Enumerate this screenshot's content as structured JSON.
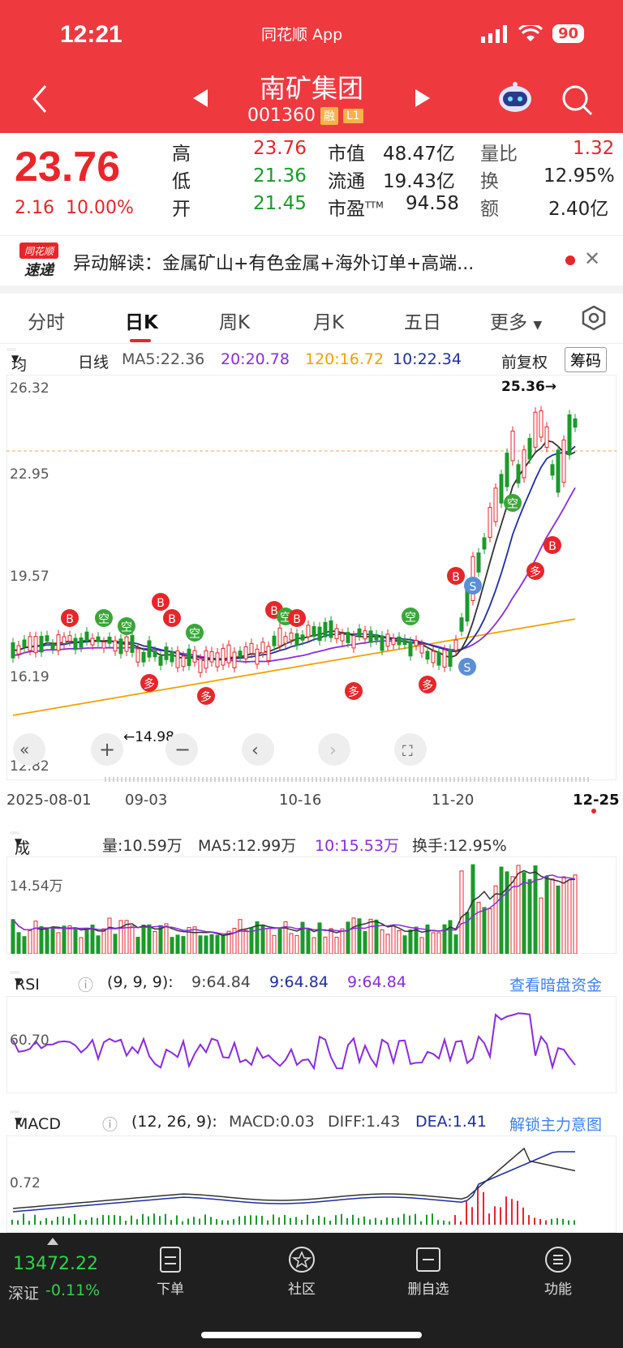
{
  "status": {
    "time": "12:21",
    "app": "同花顺 App",
    "battery": "90"
  },
  "stock": {
    "name": "南矿集团",
    "code": "001360",
    "tag1": "融",
    "tag2": "L1"
  },
  "quote": {
    "price": "23.76",
    "change": "2.16",
    "change_pct": "10.00%",
    "high_label": "高",
    "high": "23.76",
    "low_label": "低",
    "low": "21.36",
    "open_label": "开",
    "open": "21.45",
    "mcap_label": "市值",
    "mcap": "48.47亿",
    "float_label": "流通",
    "float": "19.43亿",
    "pe_label": "市盈",
    "pe_sup": "TTM",
    "pe": "94.58",
    "vr_label": "量比",
    "vr": "1.32",
    "turn_label": "换",
    "turn": "12.95%",
    "amt_label": "额",
    "amt": "2.40亿"
  },
  "news": {
    "logo_top": "同花顺",
    "logo_bottom": "速递",
    "text": "异动解读：金属矿山+有色金属+海外订单+高端..."
  },
  "tabs": [
    "分时",
    "日K",
    "周K",
    "月K",
    "五日",
    "更多"
  ],
  "ma_bar": {
    "chip": "均线",
    "period": "日线",
    "ma5": "MA5:22.36",
    "ma20": "20:20.78",
    "ma120": "120:16.72",
    "ma10": "10:22.34",
    "adj": "前复权",
    "chip_btn": "筹码"
  },
  "kline": {
    "y_ticks": [
      "26.32",
      "22.95",
      "19.57",
      "16.19",
      "12.82"
    ],
    "x_ticks": [
      "2025-08-01",
      "09-03",
      "10-16",
      "11-20",
      "12-25"
    ],
    "high_marker": "25.36→",
    "low_marker": "←14.98"
  },
  "volume": {
    "chip": "成交量",
    "vol": "量:10.59万",
    "ma5": "MA5:12.99万",
    "ma10": "10:15.53万",
    "turnover": "换手:12.95%",
    "tick": "14.54万"
  },
  "rsi": {
    "chip": "RSI",
    "params": "(9, 9, 9):",
    "v1": "9:64.84",
    "v2": "9:64.84",
    "v3": "9:64.84",
    "link": "查看暗盘资金",
    "tick": "60.70"
  },
  "macd": {
    "chip": "MACD",
    "params": "(12, 26, 9):",
    "macd": "MACD:0.03",
    "diff": "DIFF:1.43",
    "dea": "DEA:1.41",
    "link": "解锁主力意图",
    "tick": "0.72"
  },
  "bottom": {
    "index_value": "13472.22",
    "index_name": "深证",
    "index_change": "-0.11%",
    "items": [
      "下单",
      "社区",
      "删自选",
      "功能"
    ]
  },
  "colors": {
    "up": "#e8262a",
    "down": "#1a9a2a",
    "brand": "#ee3a3f"
  }
}
